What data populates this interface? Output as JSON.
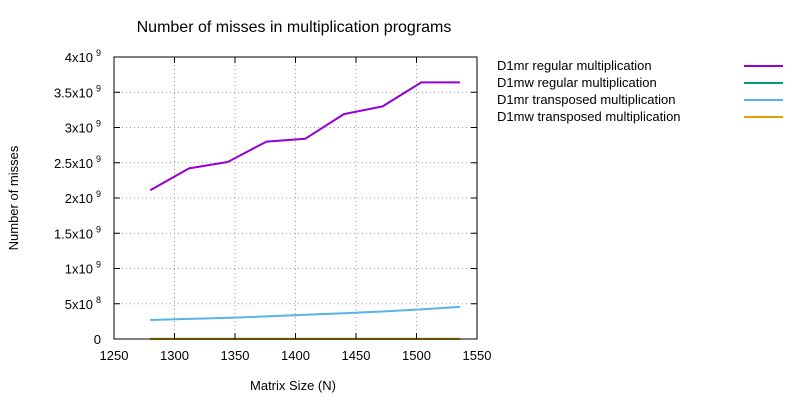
{
  "chart_data": {
    "type": "line",
    "title": "Number of misses in multiplication programs",
    "xlabel": "Matrix Size (N)",
    "ylabel": "Number of misses",
    "xlim": [
      1250,
      1550
    ],
    "ylim": [
      0,
      4000000000
    ],
    "grid": true,
    "legend_position": "right",
    "x_ticks": [
      {
        "value": 1250,
        "label": "1250"
      },
      {
        "value": 1300,
        "label": "1300"
      },
      {
        "value": 1350,
        "label": "1350"
      },
      {
        "value": 1400,
        "label": "1400"
      },
      {
        "value": 1450,
        "label": "1450"
      },
      {
        "value": 1500,
        "label": "1500"
      },
      {
        "value": 1550,
        "label": "1550"
      }
    ],
    "y_ticks": [
      {
        "value": 0,
        "mantissa": "0",
        "exponent": ""
      },
      {
        "value": 500000000,
        "mantissa": "5x10",
        "exponent": "8"
      },
      {
        "value": 1000000000,
        "mantissa": "1x10",
        "exponent": "9"
      },
      {
        "value": 1500000000,
        "mantissa": "1.5x10",
        "exponent": "9"
      },
      {
        "value": 2000000000,
        "mantissa": "2x10",
        "exponent": "9"
      },
      {
        "value": 2500000000,
        "mantissa": "2.5x10",
        "exponent": "9"
      },
      {
        "value": 3000000000,
        "mantissa": "3x10",
        "exponent": "9"
      },
      {
        "value": 3500000000,
        "mantissa": "3.5x10",
        "exponent": "9"
      },
      {
        "value": 4000000000,
        "mantissa": "4x10",
        "exponent": "9"
      }
    ],
    "x": [
      1280,
      1312,
      1344,
      1376,
      1408,
      1440,
      1472,
      1504,
      1536
    ],
    "series": [
      {
        "name": "D1mr regular multiplication",
        "color": "#9400d3",
        "values": [
          2110000000,
          2420000000,
          2510000000,
          2800000000,
          2840000000,
          3190000000,
          3300000000,
          3640000000,
          3640000000
        ]
      },
      {
        "name": "D1mw regular multiplication",
        "color": "#009e73",
        "values": [
          1000000,
          1000000,
          1000000,
          1000000,
          1000000,
          1000000,
          1000000,
          1000000,
          1000000
        ]
      },
      {
        "name": "D1mr transposed multiplication",
        "color": "#56b4e9",
        "values": [
          270000000,
          285000000,
          300000000,
          320000000,
          345000000,
          365000000,
          390000000,
          420000000,
          455000000
        ]
      },
      {
        "name": "D1mw transposed multiplication",
        "color": "#e69f00",
        "values": [
          1000000,
          1000000,
          1000000,
          1000000,
          1000000,
          1000000,
          1000000,
          1000000,
          1000000
        ]
      }
    ]
  }
}
